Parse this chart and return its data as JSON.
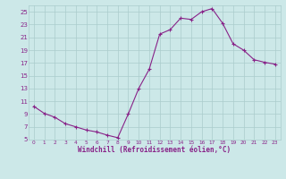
{
  "x": [
    0,
    1,
    2,
    3,
    4,
    5,
    6,
    7,
    8,
    9,
    10,
    11,
    12,
    13,
    14,
    15,
    16,
    17,
    18,
    19,
    20,
    21,
    22,
    23
  ],
  "y": [
    10.2,
    9.1,
    8.5,
    7.5,
    7.0,
    6.5,
    6.2,
    5.7,
    5.3,
    9.0,
    13.0,
    16.0,
    21.5,
    22.2,
    24.0,
    23.8,
    25.0,
    25.5,
    23.2,
    20.0,
    19.0,
    17.5,
    17.1,
    16.8
  ],
  "line_color": "#882288",
  "marker": "+",
  "bg_color": "#cce8e8",
  "grid_color": "#aacccc",
  "xlabel": "Windchill (Refroidissement éolien,°C)",
  "ylim": [
    5,
    26
  ],
  "xlim_min": -0.5,
  "xlim_max": 23.5,
  "yticks": [
    5,
    7,
    9,
    11,
    13,
    15,
    17,
    19,
    21,
    23,
    25
  ],
  "xticks": [
    0,
    1,
    2,
    3,
    4,
    5,
    6,
    7,
    8,
    9,
    10,
    11,
    12,
    13,
    14,
    15,
    16,
    17,
    18,
    19,
    20,
    21,
    22,
    23
  ],
  "font_color": "#882288",
  "tick_fontsize": 5.0,
  "xlabel_fontsize": 5.5
}
